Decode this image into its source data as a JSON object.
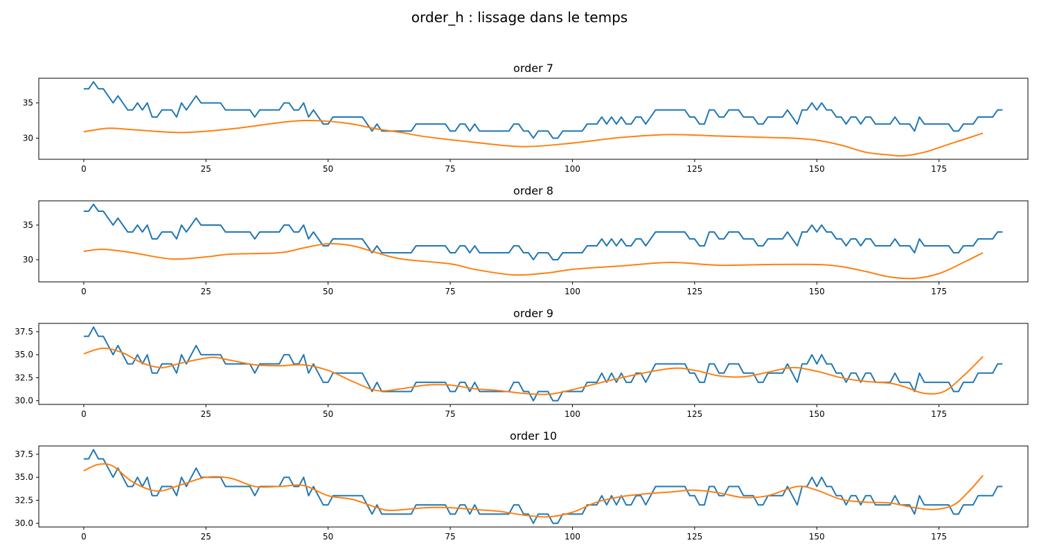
{
  "figure": {
    "suptitle": "order_h : lissage dans le temps"
  },
  "colors": {
    "raw": "#1f77b4",
    "smooth": "#ff7f0e",
    "axes": "#000000",
    "background": "#ffffff"
  },
  "chart_data": [
    {
      "type": "line",
      "title": "order 7",
      "xlim": [
        -9.2,
        193.2
      ],
      "ylim": [
        27.0,
        38.5
      ],
      "xticks": [
        0,
        25,
        50,
        75,
        100,
        125,
        150,
        175
      ],
      "yticks": [
        30,
        35
      ],
      "ytick_labels": [
        "30",
        "35"
      ],
      "grid": false,
      "series_keys": [
        "raw",
        "smooth"
      ],
      "smooth_x": [
        0,
        5,
        10,
        20,
        30,
        40,
        45,
        50,
        55,
        60,
        65,
        70,
        80,
        90,
        100,
        110,
        120,
        130,
        140,
        145,
        150,
        155,
        160,
        165,
        168,
        172,
        176,
        180,
        184
      ],
      "smooth_y": [
        30.9,
        31.4,
        31.2,
        30.8,
        31.3,
        32.2,
        32.5,
        32.4,
        32.0,
        31.3,
        30.8,
        30.2,
        29.4,
        28.8,
        29.3,
        30.1,
        30.5,
        30.3,
        30.1,
        30.0,
        29.7,
        29.0,
        28.0,
        27.6,
        27.5,
        28.0,
        28.9,
        29.8,
        30.7
      ]
    },
    {
      "type": "line",
      "title": "order 8",
      "xlim": [
        -9.2,
        193.2
      ],
      "ylim": [
        26.8,
        38.5
      ],
      "xticks": [
        0,
        25,
        50,
        75,
        100,
        125,
        150,
        175
      ],
      "yticks": [
        30,
        35
      ],
      "ytick_labels": [
        "30",
        "35"
      ],
      "grid": false,
      "series_keys": [
        "raw",
        "smooth"
      ],
      "smooth_x": [
        0,
        4,
        10,
        18,
        25,
        30,
        40,
        45,
        50,
        55,
        60,
        65,
        75,
        80,
        88,
        95,
        100,
        110,
        120,
        130,
        140,
        150,
        155,
        160,
        165,
        170,
        175,
        180,
        184
      ],
      "smooth_y": [
        31.2,
        31.5,
        31.0,
        30.1,
        30.4,
        30.8,
        31.0,
        31.7,
        32.3,
        32.0,
        31.0,
        30.1,
        29.4,
        28.6,
        27.8,
        28.1,
        28.6,
        29.1,
        29.6,
        29.2,
        29.3,
        29.3,
        29.0,
        28.3,
        27.5,
        27.3,
        28.0,
        29.6,
        31.0
      ]
    },
    {
      "type": "line",
      "title": "order 9",
      "xlim": [
        -9.2,
        193.2
      ],
      "ylim": [
        29.6,
        38.4
      ],
      "xticks": [
        0,
        25,
        50,
        75,
        100,
        125,
        150,
        175
      ],
      "yticks": [
        30.0,
        32.5,
        35.0,
        37.5
      ],
      "ytick_labels": [
        "30.0",
        "32.5",
        "35.0",
        "37.5"
      ],
      "grid": false,
      "series_keys": [
        "raw",
        "smooth"
      ],
      "smooth_x": [
        0,
        4,
        8,
        12,
        16,
        20,
        26,
        30,
        35,
        40,
        45,
        50,
        55,
        60,
        65,
        70,
        75,
        80,
        85,
        90,
        95,
        100,
        110,
        120,
        125,
        130,
        135,
        140,
        145,
        150,
        155,
        160,
        165,
        168,
        172,
        176,
        180,
        184
      ],
      "smooth_y": [
        35.1,
        35.7,
        35.2,
        34.1,
        33.6,
        34.1,
        34.7,
        34.4,
        33.9,
        33.8,
        33.9,
        33.3,
        32.1,
        31.1,
        31.3,
        31.7,
        31.7,
        31.3,
        31.1,
        30.8,
        30.7,
        31.2,
        32.5,
        33.5,
        33.3,
        32.7,
        32.6,
        33.1,
        33.6,
        33.2,
        32.5,
        32.1,
        31.9,
        31.5,
        30.8,
        31.0,
        32.7,
        34.8
      ]
    },
    {
      "type": "line",
      "title": "order 10",
      "xlim": [
        -9.2,
        193.2
      ],
      "ylim": [
        29.6,
        38.4
      ],
      "xticks": [
        0,
        25,
        50,
        75,
        100,
        125,
        150,
        175
      ],
      "yticks": [
        30.0,
        32.5,
        35.0,
        37.5
      ],
      "ytick_labels": [
        "30.0",
        "32.5",
        "35.0",
        "37.5"
      ],
      "grid": false,
      "series_keys": [
        "raw",
        "smooth"
      ],
      "smooth_x": [
        0,
        3,
        6,
        10,
        15,
        20,
        25,
        30,
        35,
        40,
        45,
        50,
        55,
        60,
        63,
        70,
        75,
        80,
        85,
        90,
        95,
        100,
        105,
        110,
        115,
        120,
        125,
        130,
        135,
        140,
        146,
        150,
        155,
        160,
        165,
        170,
        174,
        178,
        181,
        184
      ],
      "smooth_y": [
        35.7,
        36.4,
        36.2,
        34.5,
        33.5,
        34.2,
        35.0,
        34.9,
        34.0,
        34.0,
        34.1,
        33.0,
        32.6,
        31.7,
        31.4,
        31.7,
        31.7,
        31.5,
        31.3,
        30.9,
        30.7,
        31.2,
        32.3,
        32.9,
        33.2,
        33.4,
        33.6,
        33.3,
        32.8,
        33.0,
        34.0,
        33.6,
        32.6,
        32.3,
        32.2,
        31.7,
        31.5,
        32.0,
        33.4,
        35.2
      ]
    }
  ],
  "raw_series": {
    "x_start": 0,
    "x_step": 1,
    "values": [
      37,
      37,
      38,
      37,
      37,
      36,
      35,
      36,
      35,
      34,
      34,
      35,
      34,
      35,
      33,
      33,
      34,
      34,
      34,
      33,
      35,
      34,
      35,
      36,
      35,
      35,
      35,
      35,
      35,
      34,
      34,
      34,
      34,
      34,
      34,
      33,
      34,
      34,
      34,
      34,
      34,
      35,
      35,
      34,
      34,
      35,
      33,
      34,
      33,
      32,
      32,
      33,
      33,
      33,
      33,
      33,
      33,
      33,
      32,
      31,
      32,
      31,
      31,
      31,
      31,
      31,
      31,
      31,
      32,
      32,
      32,
      32,
      32,
      32,
      32,
      31,
      31,
      32,
      32,
      31,
      32,
      31,
      31,
      31,
      31,
      31,
      31,
      31,
      32,
      32,
      31,
      31,
      30,
      31,
      31,
      31,
      30,
      30,
      31,
      31,
      31,
      31,
      31,
      32,
      32,
      32,
      33,
      32,
      33,
      32,
      33,
      32,
      32,
      33,
      33,
      32,
      33,
      34,
      34,
      34,
      34,
      34,
      34,
      34,
      33,
      33,
      32,
      32,
      34,
      34,
      33,
      33,
      34,
      34,
      34,
      33,
      33,
      33,
      32,
      32,
      33,
      33,
      33,
      33,
      34,
      33,
      32,
      34,
      34,
      35,
      34,
      35,
      34,
      34,
      33,
      33,
      32,
      33,
      33,
      32,
      33,
      33,
      32,
      32,
      32,
      32,
      33,
      32,
      32,
      32,
      31,
      33,
      32,
      32,
      32,
      32,
      32,
      32,
      31,
      31,
      32,
      32,
      32,
      33,
      33,
      33,
      33,
      34,
      34
    ]
  }
}
